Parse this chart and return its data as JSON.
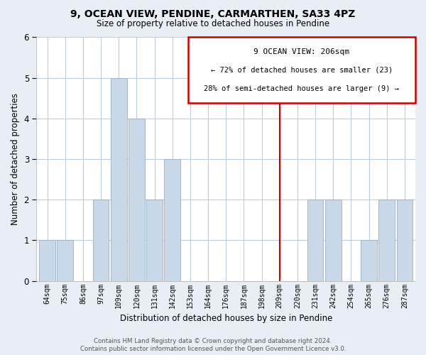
{
  "title": "9, OCEAN VIEW, PENDINE, CARMARTHEN, SA33 4PZ",
  "subtitle": "Size of property relative to detached houses in Pendine",
  "xlabel": "Distribution of detached houses by size in Pendine",
  "ylabel": "Number of detached properties",
  "bin_labels": [
    "64sqm",
    "75sqm",
    "86sqm",
    "97sqm",
    "109sqm",
    "120sqm",
    "131sqm",
    "142sqm",
    "153sqm",
    "164sqm",
    "176sqm",
    "187sqm",
    "198sqm",
    "209sqm",
    "220sqm",
    "231sqm",
    "242sqm",
    "254sqm",
    "265sqm",
    "276sqm",
    "287sqm"
  ],
  "bar_heights": [
    1,
    1,
    0,
    2,
    5,
    4,
    2,
    3,
    0,
    0,
    0,
    0,
    0,
    0,
    0,
    2,
    2,
    0,
    1,
    2,
    2
  ],
  "bar_color": "#c8d8e8",
  "bar_edgecolor": "#9ab0c8",
  "vline_x_index": 13,
  "vline_color": "#cc0000",
  "ylim": [
    0,
    6
  ],
  "yticks": [
    0,
    1,
    2,
    3,
    4,
    5,
    6
  ],
  "annotation_title": "9 OCEAN VIEW: 206sqm",
  "annotation_line1": "← 72% of detached houses are smaller (23)",
  "annotation_line2": "28% of semi-detached houses are larger (9) →",
  "annotation_box_color": "#cc0000",
  "footer_line1": "Contains HM Land Registry data © Crown copyright and database right 2024.",
  "footer_line2": "Contains public sector information licensed under the Open Government Licence v3.0.",
  "background_color": "#e8eef4",
  "plot_background_color": "#ffffff",
  "grid_color": "#c0ccd8"
}
